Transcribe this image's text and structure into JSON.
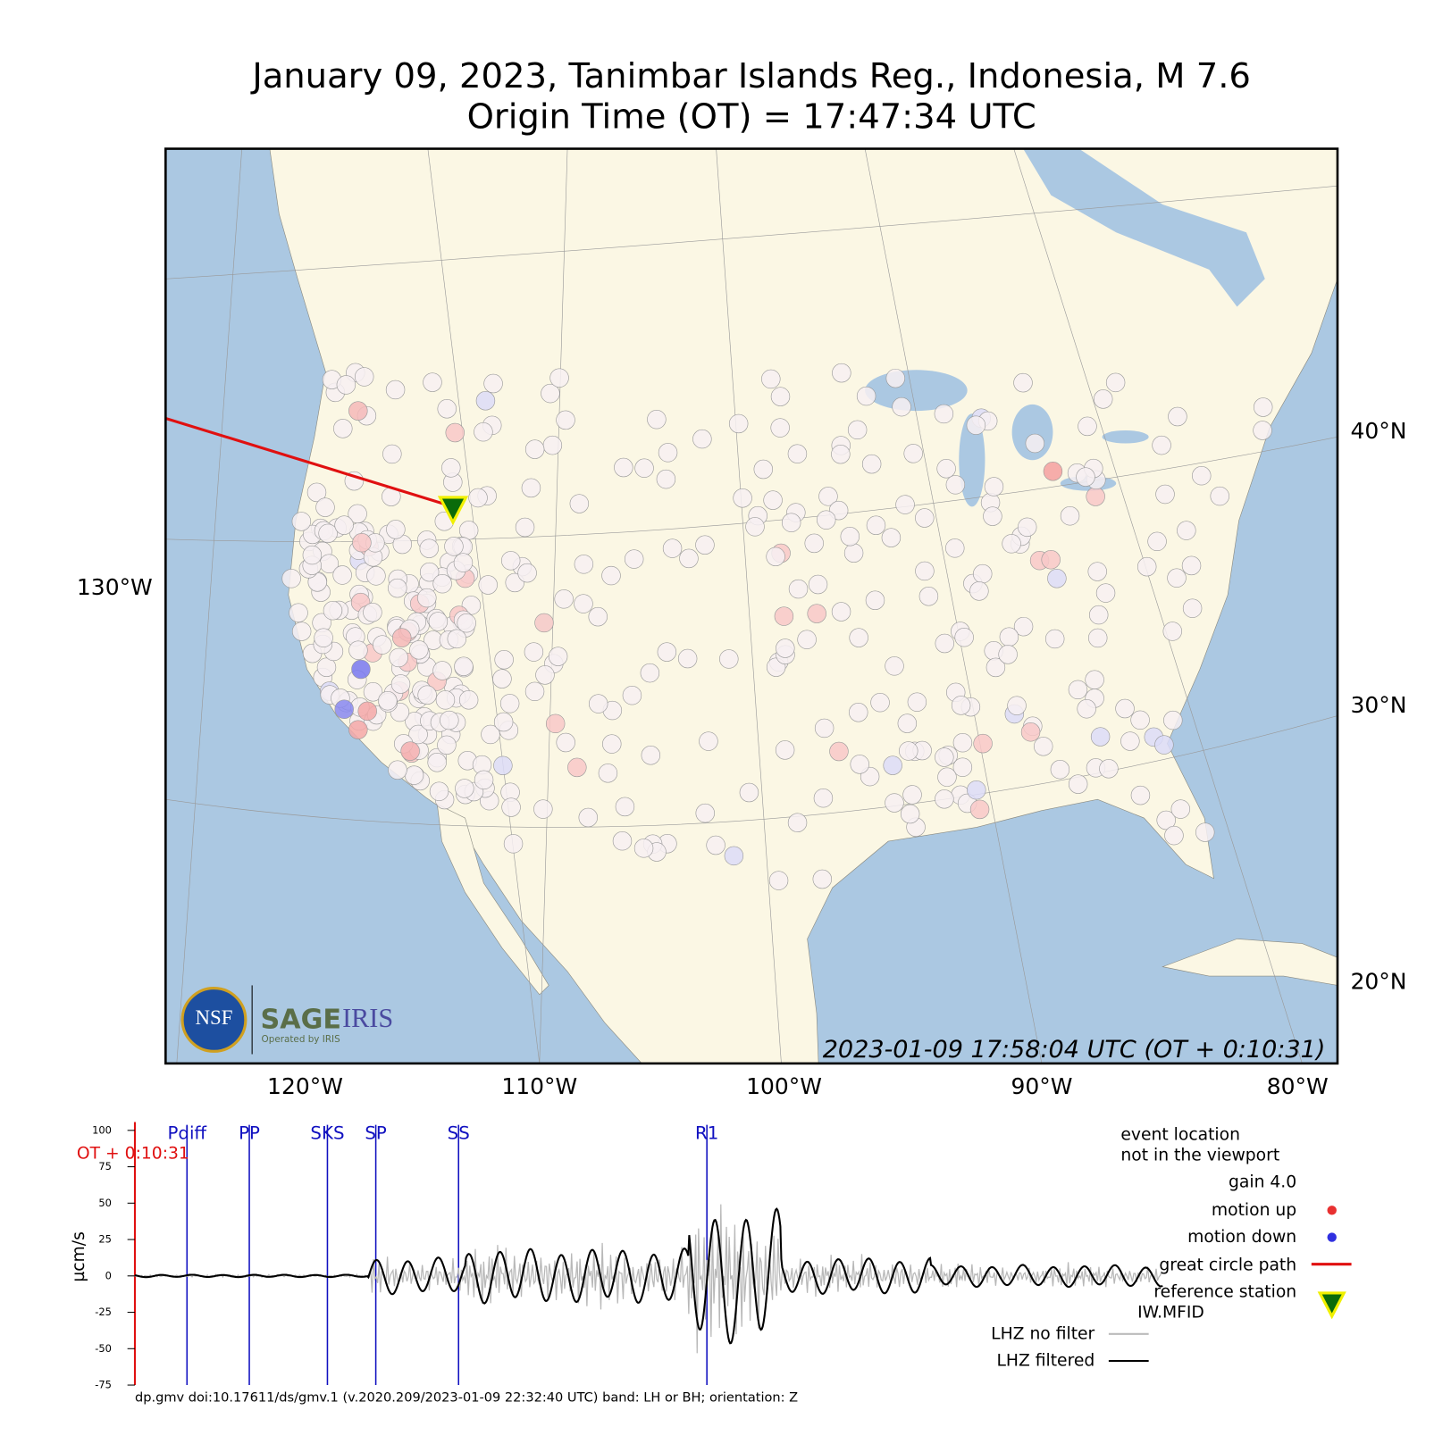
{
  "header": {
    "title": "January 09, 2023, Tanimbar Islands Reg., Indonesia, M 7.6",
    "subtitle": "Origin Time (OT) = 17:47:34 UTC"
  },
  "map": {
    "lon_labels": [
      "120°W",
      "110°W",
      "100°W",
      "90°W",
      "80°W"
    ],
    "lat_labels": [
      "40°N",
      "30°N",
      "20°N"
    ],
    "left_label": "130°W",
    "timestamp": "2023-01-09 17:58:04 UTC (OT + 0:10:31)",
    "logo": {
      "nsf": "NSF",
      "sage": "SAGE",
      "iris": "IRIS",
      "operated": "Operated by IRIS"
    }
  },
  "seismogram": {
    "ylabel": "µcm/s",
    "ylim": [
      -75,
      100
    ],
    "yticks": [
      100,
      75,
      50,
      25,
      0,
      -25,
      -50,
      -75
    ],
    "ot_label": "OT + 0:10:31",
    "phases": [
      "Pdiff",
      "PP",
      "SKS",
      "SP",
      "SS",
      "R1"
    ]
  },
  "legend": {
    "event_1": "event location",
    "event_2": "not in the viewport",
    "gain": "gain  4.0",
    "up": "motion up",
    "down": "motion down",
    "path": "great circle path",
    "ref_1": "reference station",
    "ref_2": "IW.MFID",
    "nofilter": "LHZ no filter",
    "filtered": "LHZ filtered"
  },
  "footer": "dp.gmv doi:10.17611/ds/gmv.1 (v.2020.209/2023-01-09 22:32:40 UTC) band: LH or BH; orientation: Z"
}
